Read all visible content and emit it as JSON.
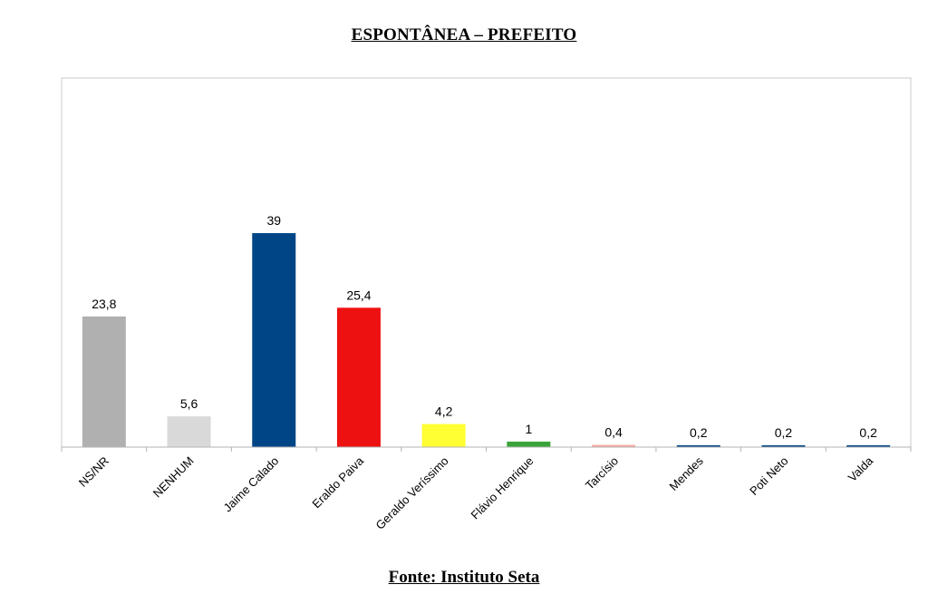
{
  "chart_data": {
    "type": "bar",
    "title": "ESPONTÂNEA – PREFEITO",
    "source": "Fonte: Instituto Seta",
    "xlabel": "",
    "ylabel": "",
    "ylim": [
      0,
      44
    ],
    "grid": false,
    "legend": "none",
    "categories": [
      "NS/NR",
      "NENHUM",
      "Jaime Calado",
      "Eraldo Paiva",
      "Geraldo Veríssimo",
      "Flávio Henrique",
      "Tarcísio",
      "Mendes",
      "Poti Neto",
      "Valda"
    ],
    "values": [
      23.8,
      5.6,
      39,
      25.4,
      4.2,
      1,
      0.4,
      0.2,
      0.2,
      0.2
    ],
    "value_labels": [
      "23,8",
      "5,6",
      "39",
      "25,4",
      "4,2",
      "1",
      "0,4",
      "0,2",
      "0,2",
      "0,2"
    ],
    "colors": [
      "#b0b0b0",
      "#d9d9d9",
      "#004586",
      "#ee1111",
      "#ffff33",
      "#3aa43a",
      "#ffa9a0",
      "#004586",
      "#004586",
      "#004586"
    ]
  }
}
